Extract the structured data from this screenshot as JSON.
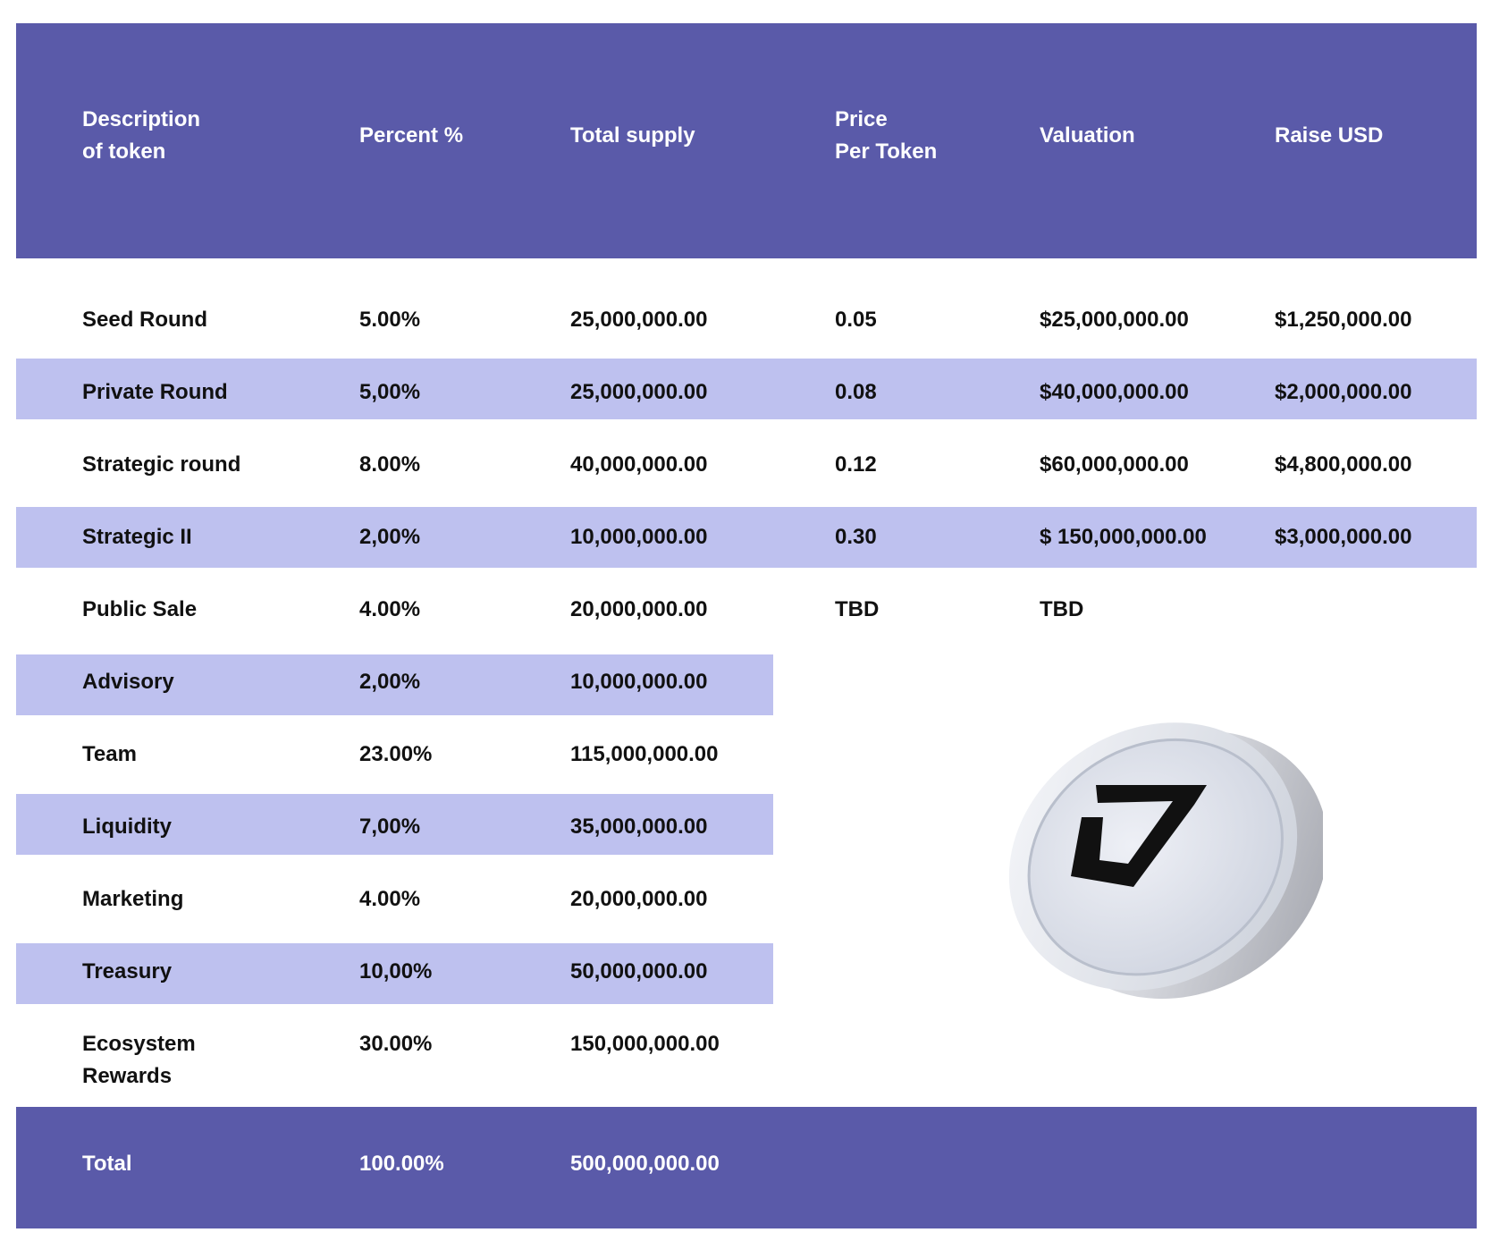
{
  "headers": {
    "description": [
      "Description",
      "of token"
    ],
    "percent": "Percent %",
    "total_supply": "Total supply",
    "price": [
      "Price",
      "Per Token"
    ],
    "valuation": "Valuation",
    "raise": "Raise USD"
  },
  "rows": [
    {
      "description": "Seed Round",
      "percent": "5.00%",
      "supply": "25,000,000.00",
      "price": "0.05",
      "valuation": "$25,000,000.00",
      "raise": "$1,250,000.00"
    },
    {
      "description": "Private Round",
      "percent": "5,00%",
      "supply": "25,000,000.00",
      "price": "0.08",
      "valuation": "$40,000,000.00",
      "raise": "$2,000,000.00"
    },
    {
      "description": "Strategic round",
      "percent": "8.00%",
      "supply": "40,000,000.00",
      "price": "0.12",
      "valuation": "$60,000,000.00",
      "raise": "$4,800,000.00"
    },
    {
      "description": "Strategic II",
      "percent": "2,00%",
      "supply": "10,000,000.00",
      "price": "0.30",
      "valuation": "$ 150,000,000.00",
      "raise": "$3,000,000.00"
    },
    {
      "description": "Public Sale",
      "percent": "4.00%",
      "supply": "20,000,000.00",
      "price": "TBD",
      "valuation": "TBD",
      "raise": ""
    },
    {
      "description": "Advisory",
      "percent": "2,00%",
      "supply": "10,000,000.00"
    },
    {
      "description": "Team",
      "percent": "23.00%",
      "supply": "115,000,000.00"
    },
    {
      "description": "Liquidity",
      "percent": "7,00%",
      "supply": "35,000,000.00"
    },
    {
      "description": "Marketing",
      "percent": "4.00%",
      "supply": "20,000,000.00"
    },
    {
      "description": "Treasury",
      "percent": "10,00%",
      "supply": "50,000,000.00"
    },
    {
      "description": [
        "Ecosystem",
        "Rewards"
      ],
      "percent": "30.00%",
      "supply": "150,000,000.00"
    }
  ],
  "total": {
    "description": "Total",
    "percent": "100.00%",
    "supply": "500,000,000.00"
  },
  "colors": {
    "header": "#5a5aa9",
    "stripe": "#bec1ef",
    "text": "#111111"
  },
  "logo": {
    "icon": "token-coin-icon"
  }
}
